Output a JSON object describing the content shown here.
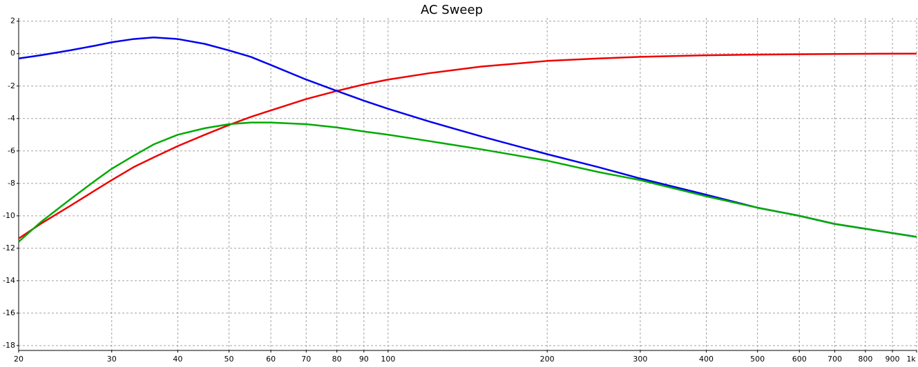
{
  "chart_data": {
    "type": "line",
    "title": "AC Sweep",
    "xscale": "log",
    "grid": true,
    "x": [
      20,
      22,
      25,
      28,
      30,
      33,
      36,
      40,
      45,
      50,
      55,
      60,
      70,
      80,
      90,
      100,
      120,
      150,
      200,
      250,
      300,
      400,
      500,
      600,
      700,
      800,
      1000
    ],
    "series": [
      {
        "color": "#ee0000",
        "values": [
          -11.4,
          -10.5,
          -9.4,
          -8.4,
          -7.8,
          -7.0,
          -6.4,
          -5.7,
          -5.0,
          -4.4,
          -3.9,
          -3.5,
          -2.8,
          -2.3,
          -1.9,
          -1.6,
          -1.2,
          -0.8,
          -0.45,
          -0.3,
          -0.2,
          -0.1,
          -0.06,
          -0.04,
          -0.02,
          -0.01,
          0
        ]
      },
      {
        "color": "#0000ee",
        "values": [
          -0.3,
          -0.1,
          0.2,
          0.5,
          0.7,
          0.9,
          1.0,
          0.9,
          0.6,
          0.2,
          -0.2,
          -0.7,
          -1.6,
          -2.3,
          -2.9,
          -3.4,
          -4.2,
          -5.1,
          -6.2,
          -7.0,
          -7.7,
          -8.7,
          -9.5,
          -10.0,
          -10.5,
          -10.8,
          -11.3
        ]
      },
      {
        "color": "#00aa00",
        "values": [
          -11.6,
          -10.4,
          -9.0,
          -7.8,
          -7.1,
          -6.3,
          -5.6,
          -5.0,
          -4.6,
          -4.35,
          -4.25,
          -4.25,
          -4.35,
          -4.55,
          -4.8,
          -5.0,
          -5.4,
          -5.9,
          -6.6,
          -7.3,
          -7.8,
          -8.8,
          -9.5,
          -10.0,
          -10.5,
          -10.8,
          -11.3
        ]
      }
    ],
    "xlim": [
      20,
      1000
    ],
    "xticks": [
      20,
      30,
      40,
      50,
      60,
      70,
      80,
      90,
      100,
      200,
      300,
      400,
      500,
      600,
      700,
      800,
      900,
      {
        "value": 1000,
        "label": "1k"
      }
    ],
    "ylim": [
      -18.3,
      2.2
    ],
    "yticks": [
      2,
      0,
      -2,
      -4,
      -6,
      -8,
      -10,
      -12,
      -14,
      -16,
      -18
    ]
  }
}
